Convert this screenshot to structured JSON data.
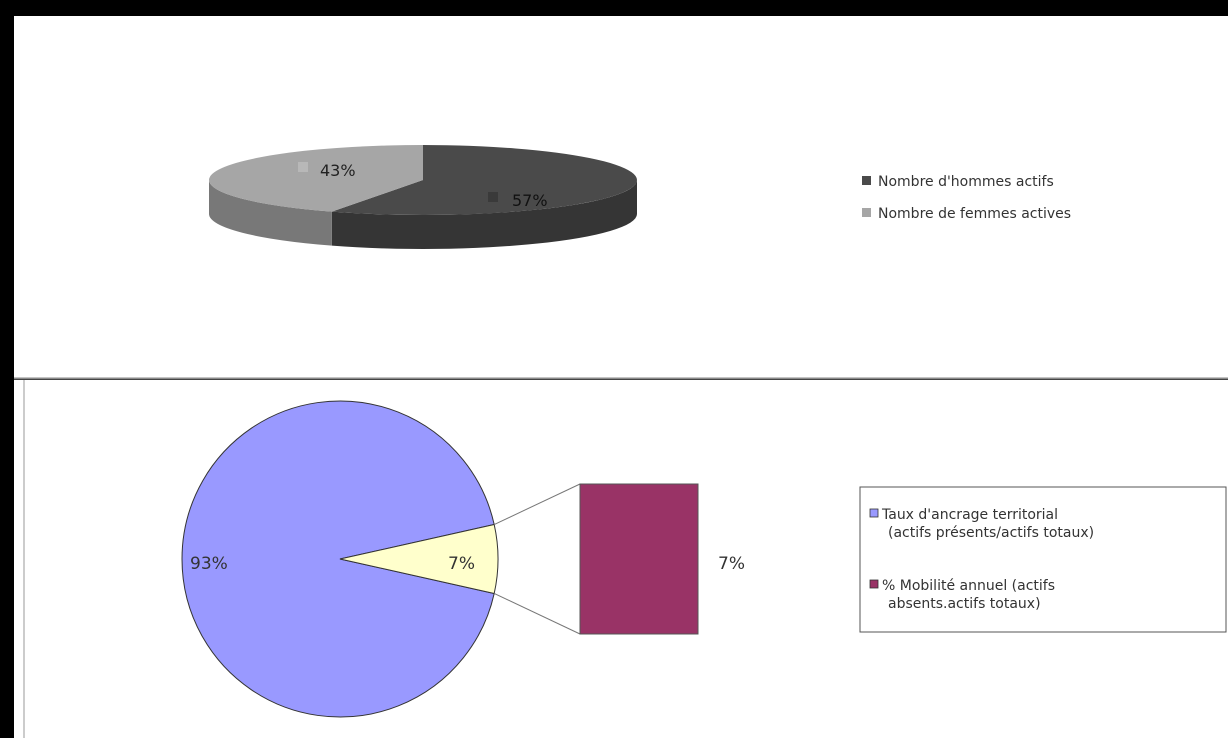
{
  "chart_data": [
    {
      "type": "pie",
      "labels": [
        "Nombre d'hommes actifs",
        "Nombre de femmes actives"
      ],
      "values": [
        57,
        43
      ],
      "data_labels": [
        "57%",
        "43%"
      ],
      "colors": [
        "#4a4a4a",
        "#a6a6a6"
      ],
      "style": "3d",
      "legend": "right",
      "title": ""
    },
    {
      "type": "pie",
      "subtype": "bar-of-pie",
      "labels": [
        "Taux d'ancrage territorial (actifs présents/actifs totaux)",
        "% Mobilité annuel (actifs absents.actifs totaux)"
      ],
      "legend_lines": [
        [
          "Taux d'ancrage territorial",
          "(actifs présents/actifs totaux)"
        ],
        [
          "% Mobilité annuel (actifs",
          "absents.actifs totaux)"
        ]
      ],
      "values": [
        93,
        7
      ],
      "data_labels": [
        "93%",
        "7%"
      ],
      "bar_label": "7%",
      "colors": [
        "#9999ff",
        "#ffffcc",
        "#993366"
      ],
      "legend": "right",
      "title": ""
    }
  ]
}
